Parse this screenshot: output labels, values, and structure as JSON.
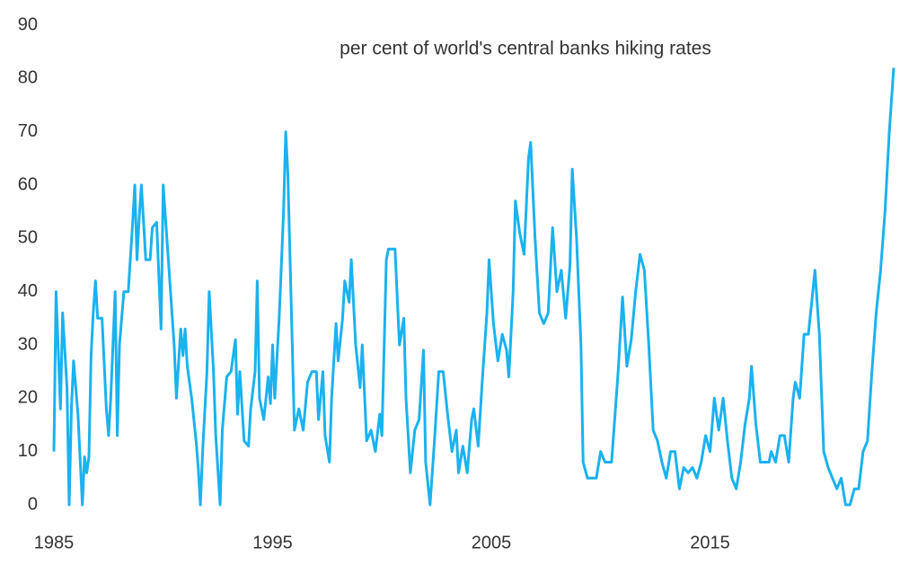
{
  "chart_data": {
    "type": "line",
    "title": "per cent of world's central banks hiking rates",
    "color": "#1ab2ef",
    "xlim": [
      1985,
      2023.4
    ],
    "xticks": [
      1985,
      1995,
      2005,
      2015
    ],
    "ylim": [
      0,
      90
    ],
    "yticks": [
      0,
      10,
      20,
      30,
      40,
      50,
      60,
      70,
      80,
      90
    ],
    "grid": false,
    "x": [
      1985.0,
      1985.1,
      1985.3,
      1985.4,
      1985.6,
      1985.7,
      1985.8,
      1985.9,
      1986.1,
      1986.3,
      1986.4,
      1986.5,
      1986.6,
      1986.7,
      1986.8,
      1986.9,
      1987.0,
      1987.2,
      1987.4,
      1987.5,
      1987.6,
      1987.8,
      1987.9,
      1988.0,
      1988.2,
      1988.4,
      1988.6,
      1988.7,
      1988.8,
      1988.9,
      1989.0,
      1989.2,
      1989.4,
      1989.5,
      1989.7,
      1989.9,
      1990.0,
      1990.2,
      1990.5,
      1990.6,
      1990.8,
      1990.9,
      1991.0,
      1991.1,
      1991.3,
      1991.5,
      1991.6,
      1991.7,
      1991.8,
      1992.0,
      1992.1,
      1992.3,
      1992.4,
      1992.6,
      1992.7,
      1992.9,
      1993.1,
      1993.3,
      1993.4,
      1993.5,
      1993.7,
      1993.9,
      1994.0,
      1994.2,
      1994.3,
      1994.4,
      1994.6,
      1994.8,
      1994.9,
      1995.0,
      1995.1,
      1995.3,
      1995.5,
      1995.6,
      1995.7,
      1995.9,
      1996.0,
      1996.2,
      1996.4,
      1996.6,
      1996.8,
      1997.0,
      1997.1,
      1997.3,
      1997.4,
      1997.6,
      1997.7,
      1997.9,
      1998.0,
      1998.2,
      1998.3,
      1998.5,
      1998.6,
      1998.8,
      1999.0,
      1999.1,
      1999.3,
      1999.5,
      1999.7,
      1999.9,
      2000.0,
      2000.2,
      2000.3,
      2000.6,
      2000.8,
      2001.0,
      2001.1,
      2001.3,
      2001.5,
      2001.7,
      2001.9,
      2002.0,
      2002.2,
      2002.4,
      2002.6,
      2002.8,
      2003.0,
      2003.2,
      2003.4,
      2003.5,
      2003.7,
      2003.9,
      2004.1,
      2004.2,
      2004.4,
      2004.6,
      2004.8,
      2004.9,
      2005.1,
      2005.3,
      2005.5,
      2005.7,
      2005.8,
      2006.0,
      2006.1,
      2006.3,
      2006.5,
      2006.7,
      2006.8,
      2007.0,
      2007.2,
      2007.4,
      2007.6,
      2007.8,
      2008.0,
      2008.2,
      2008.4,
      2008.6,
      2008.7,
      2008.9,
      2009.1,
      2009.2,
      2009.4,
      2009.8,
      2010.0,
      2010.2,
      2010.5,
      2010.8,
      2011.0,
      2011.2,
      2011.4,
      2011.6,
      2011.8,
      2012.0,
      2012.2,
      2012.4,
      2012.6,
      2012.8,
      2013.0,
      2013.2,
      2013.4,
      2013.6,
      2013.8,
      2014.0,
      2014.2,
      2014.4,
      2014.6,
      2014.8,
      2015.0,
      2015.2,
      2015.4,
      2015.6,
      2015.8,
      2016.0,
      2016.2,
      2016.4,
      2016.6,
      2016.8,
      2016.9,
      2017.1,
      2017.3,
      2017.5,
      2017.7,
      2017.8,
      2018.0,
      2018.2,
      2018.4,
      2018.6,
      2018.8,
      2018.9,
      2019.1,
      2019.3,
      2019.5,
      2019.7,
      2019.8,
      2020.0,
      2020.2,
      2020.4,
      2020.6,
      2020.8,
      2021.0,
      2021.2,
      2021.4,
      2021.6,
      2021.8,
      2022.0,
      2022.2,
      2022.4,
      2022.6,
      2022.8,
      2023.0,
      2023.2,
      2023.4
    ],
    "values": [
      10,
      40,
      18,
      36,
      22,
      0,
      18,
      27,
      17,
      0,
      9,
      6,
      9,
      28,
      36,
      42,
      35,
      35,
      18,
      13,
      20,
      40,
      13,
      30,
      40,
      40,
      53,
      60,
      46,
      54,
      60,
      46,
      46,
      52,
      53,
      33,
      60,
      48,
      30,
      20,
      33,
      28,
      33,
      26,
      20,
      12,
      7,
      0,
      10,
      25,
      40,
      25,
      13,
      0,
      14,
      24,
      25,
      31,
      17,
      25,
      12,
      11,
      18,
      25,
      42,
      20,
      16,
      24,
      19,
      30,
      20,
      35,
      55,
      70,
      62,
      30,
      14,
      18,
      14,
      23,
      25,
      25,
      16,
      25,
      13,
      8,
      20,
      34,
      27,
      35,
      42,
      38,
      46,
      30,
      22,
      30,
      12,
      14,
      10,
      17,
      13,
      46,
      48,
      48,
      30,
      35,
      20,
      6,
      14,
      16,
      29,
      8,
      0,
      12,
      25,
      25,
      17,
      10,
      14,
      6,
      11,
      6,
      16,
      18,
      11,
      24,
      36,
      46,
      34,
      27,
      32,
      29,
      24,
      40,
      57,
      51,
      47,
      65,
      68,
      50,
      36,
      34,
      36,
      52,
      40,
      44,
      35,
      45,
      63,
      50,
      30,
      8,
      5,
      5,
      10,
      8,
      8,
      25,
      39,
      26,
      31,
      40,
      47,
      44,
      30,
      14,
      12,
      8,
      5,
      10,
      10,
      3,
      7,
      6,
      7,
      5,
      8,
      13,
      10,
      20,
      14,
      20,
      12,
      5,
      3,
      8,
      15,
      20,
      26,
      15,
      8,
      8,
      8,
      10,
      8,
      13,
      13,
      8,
      20,
      23,
      20,
      32,
      32,
      40,
      44,
      32,
      10,
      7,
      5,
      3,
      5,
      0,
      0,
      3,
      3,
      10,
      12,
      25,
      36,
      44,
      55,
      70,
      82
    ]
  }
}
